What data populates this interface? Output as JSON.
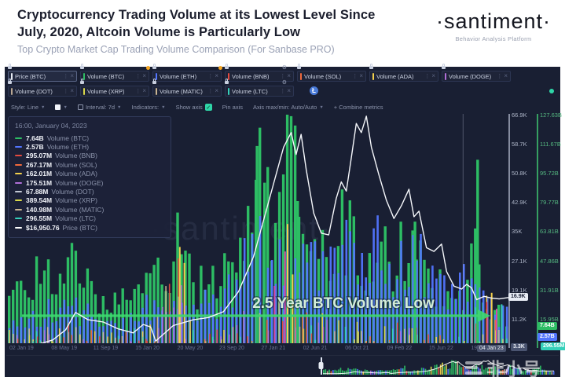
{
  "header": {
    "title_line1": "Cryptocurrency Trading Volume at its Lowest Level Since",
    "title_line2": "July, 2020, Altcoin Volume is Particularly Low",
    "subtitle": "Top Crypto Market Cap Trading Volume Comparison (For Sanbase PRO)",
    "logo": "·santiment·",
    "logo_tagline": "Behavior Analysis Platform"
  },
  "tabs": {
    "close_label": "×",
    "kebab_label": "⋮",
    "row1": [
      {
        "label": "Price (BTC)",
        "color": "#e8ecf4",
        "selected": true,
        "lock": true
      },
      {
        "label": "Volume (BTC)",
        "color": "#2dbd64",
        "lock": true,
        "dot": true
      },
      {
        "label": "Volume (ETH)",
        "color": "#5275ff",
        "lock": true,
        "dot": true
      },
      {
        "label": "Volume (BNB)",
        "color": "#e34a3f",
        "lock": true,
        "gear": true
      },
      {
        "label": "Volume (SOL)",
        "color": "#f0693c",
        "lock": true
      },
      {
        "label": "Volume (ADA)",
        "color": "#f2cf4c",
        "lock": true
      },
      {
        "label": "Volume (DOGE)",
        "color": "#b06fd8",
        "lock": true
      }
    ],
    "row2": [
      {
        "label": "Volume (DOT)",
        "color": "#b9a793",
        "lock": true
      },
      {
        "label": "Volume (XRP)",
        "color": "#d9d84a",
        "lock": true
      },
      {
        "label": "Volume (MATIC)",
        "color": "#cbb593",
        "lock": true
      },
      {
        "label": "Volume (LTC)",
        "color": "#35d0ba",
        "lock": true,
        "gear": true,
        "coin": "Ł"
      }
    ]
  },
  "toolbar": {
    "style_label": "Style: Line",
    "interval_label": "Interval: 7d",
    "indicators_label": "Indicators:",
    "show_axis_label": "Show axis",
    "check_glyph": "✓",
    "pin_axis_label": "Pin axis",
    "axis_maxmin_label": "Axis max/min: Auto/Auto",
    "combine_label": "+ Combine metrics"
  },
  "tooltip": {
    "datetime": "16:00, January 04, 2023",
    "rows": [
      {
        "value": "7.64B",
        "label": "Volume (BTC)",
        "color": "#2dbd64"
      },
      {
        "value": "2.57B",
        "label": "Volume (ETH)",
        "color": "#5275ff"
      },
      {
        "value": "295.07M",
        "label": "Volume (BNB)",
        "color": "#e34a3f"
      },
      {
        "value": "267.17M",
        "label": "Volume (SOL)",
        "color": "#f0693c"
      },
      {
        "value": "162.01M",
        "label": "Volume (ADA)",
        "color": "#f2cf4c"
      },
      {
        "value": "175.51M",
        "label": "Volume (DOGE)",
        "color": "#b06fd8"
      },
      {
        "value": "67.88M",
        "label": "Volume (DOT)",
        "color": "#c3c8d4"
      },
      {
        "value": "389.54M",
        "label": "Volume (XRP)",
        "color": "#d9d84a"
      },
      {
        "value": "140.98M",
        "label": "Volume (MATIC)",
        "color": "#cbb593"
      },
      {
        "value": "296.55M",
        "label": "Volume (LTC)",
        "color": "#35d0ba"
      },
      {
        "value": "$16,950.76",
        "label": "Price (BTC)",
        "color": "#ffffff"
      }
    ]
  },
  "annotation": {
    "text": "2.5 Year BTC Volume Low",
    "arrow_color": "#3ed96e",
    "text_color": "#d3ecd8"
  },
  "axes": {
    "price_labels": [
      "66.9K",
      "58.7K",
      "50.8K",
      "42.9K",
      "35K",
      "27.1K",
      "19.1K",
      "11.2K"
    ],
    "price_min_badge": "3.3K",
    "price_badge": "16.9K",
    "volume_labels": [
      "127.63B",
      "111.67B",
      "95.72B",
      "79.77B",
      "63.81B",
      "47.86B",
      "31.91B",
      "15.95B"
    ],
    "volume_badges": [
      {
        "text": "7.64B",
        "color": "#2dbd64"
      },
      {
        "text": "2.57B",
        "color": "#5275ff"
      },
      {
        "text": "296.55M",
        "color": "#35d0ba"
      }
    ],
    "dates": [
      "02 Jan 19",
      "08 May 19",
      "11 Sep 19",
      "15 Jan 20",
      "20 May 20",
      "23 Sep 20",
      "27 Jan 21",
      "02 Jun 21",
      "06 Oct 21",
      "09 Feb 22",
      "15 Jun 22",
      "19 Oct 22"
    ],
    "current_date_badge": "04 Jan 23"
  },
  "watermarks": {
    "chart": "·santiment·",
    "bottom_right": "非小号"
  },
  "chart_data": {
    "type": "composite",
    "subtypes": [
      "bar",
      "line"
    ],
    "title": "2.5 Year BTC Volume Low",
    "x_tick_labels": [
      "02 Jan 19",
      "08 May 19",
      "11 Sep 19",
      "15 Jan 20",
      "20 May 20",
      "23 Sep 20",
      "27 Jan 21",
      "02 Jun 21",
      "06 Oct 21",
      "09 Feb 22",
      "15 Jun 22",
      "19 Oct 22",
      "04 Jan 23"
    ],
    "price_axis": {
      "unit": "USD",
      "tick_labels": [
        "66.9K",
        "58.7K",
        "50.8K",
        "42.9K",
        "35K",
        "27.1K",
        "19.1K",
        "11.2K",
        "3.3K"
      ],
      "min_k": 3.3,
      "max_k": 67.1,
      "current": 16.9
    },
    "volume_axis": {
      "unit": "USD",
      "tick_labels": [
        "127.63B",
        "111.67B",
        "95.72B",
        "79.77B",
        "63.81B",
        "47.86B",
        "31.91B",
        "15.95B"
      ],
      "max_b": 130
    },
    "series": [
      {
        "name": "Price (BTC)",
        "type": "line",
        "color": "#ffffff",
        "current": "$16,950.76"
      },
      {
        "name": "Volume (BTC)",
        "type": "bar",
        "color": "#2dbd64",
        "current": "7.64B"
      },
      {
        "name": "Volume (ETH)",
        "type": "bar",
        "color": "#5275ff",
        "current": "2.57B"
      },
      {
        "name": "Volume (BNB)",
        "type": "bar",
        "color": "#e34a3f",
        "current": "295.07M"
      },
      {
        "name": "Volume (SOL)",
        "type": "bar",
        "color": "#f0693c",
        "current": "267.17M"
      },
      {
        "name": "Volume (ADA)",
        "type": "bar",
        "color": "#f2cf4c",
        "current": "162.01M"
      },
      {
        "name": "Volume (DOGE)",
        "type": "bar",
        "color": "#b06fd8",
        "current": "175.51M"
      },
      {
        "name": "Volume (DOT)",
        "type": "bar",
        "color": "#c3c8d4",
        "current": "67.88M"
      },
      {
        "name": "Volume (XRP)",
        "type": "bar",
        "color": "#d9d84a",
        "current": "389.54M"
      },
      {
        "name": "Volume (MATIC)",
        "type": "bar",
        "color": "#cbb593",
        "current": "140.98M"
      },
      {
        "name": "Volume (LTC)",
        "type": "bar",
        "color": "#35d0ba",
        "current": "296.55M"
      }
    ],
    "bars_count": 128,
    "price_points": [
      [
        0.0,
        3.8
      ],
      [
        0.03,
        3.7
      ],
      [
        0.06,
        4.0
      ],
      [
        0.09,
        5.3
      ],
      [
        0.115,
        8.0
      ],
      [
        0.135,
        12.8
      ],
      [
        0.16,
        10.8
      ],
      [
        0.19,
        10.2
      ],
      [
        0.22,
        8.3
      ],
      [
        0.25,
        7.2
      ],
      [
        0.27,
        9.5
      ],
      [
        0.285,
        8.8
      ],
      [
        0.295,
        5.0
      ],
      [
        0.33,
        9.2
      ],
      [
        0.37,
        10.8
      ],
      [
        0.4,
        11.4
      ],
      [
        0.43,
        13.0
      ],
      [
        0.46,
        18.5
      ],
      [
        0.49,
        28.0
      ],
      [
        0.51,
        38.0
      ],
      [
        0.53,
        48.0
      ],
      [
        0.55,
        58.0
      ],
      [
        0.565,
        62.0
      ],
      [
        0.575,
        56.0
      ],
      [
        0.585,
        61.5
      ],
      [
        0.595,
        52.0
      ],
      [
        0.61,
        40.0
      ],
      [
        0.625,
        34.5
      ],
      [
        0.64,
        34.0
      ],
      [
        0.655,
        44.0
      ],
      [
        0.665,
        48.5
      ],
      [
        0.675,
        46.0
      ],
      [
        0.685,
        55.0
      ],
      [
        0.695,
        64.5
      ],
      [
        0.705,
        62.0
      ],
      [
        0.715,
        66.5
      ],
      [
        0.725,
        58.0
      ],
      [
        0.74,
        50.5
      ],
      [
        0.755,
        43.5
      ],
      [
        0.77,
        38.5
      ],
      [
        0.785,
        42.0
      ],
      [
        0.8,
        46.5
      ],
      [
        0.81,
        39.0
      ],
      [
        0.82,
        40.5
      ],
      [
        0.835,
        30.5
      ],
      [
        0.85,
        29.5
      ],
      [
        0.865,
        31.5
      ],
      [
        0.875,
        24.0
      ],
      [
        0.89,
        20.0
      ],
      [
        0.905,
        19.2
      ],
      [
        0.915,
        20.5
      ],
      [
        0.925,
        19.5
      ],
      [
        0.935,
        16.3
      ],
      [
        0.95,
        17.2
      ],
      [
        0.965,
        16.7
      ],
      [
        0.98,
        16.5
      ],
      [
        1.0,
        16.9
      ]
    ],
    "btc_envelope": [
      [
        0.0,
        0.3
      ],
      [
        0.03,
        0.22
      ],
      [
        0.06,
        0.35
      ],
      [
        0.09,
        0.28
      ],
      [
        0.12,
        0.38
      ],
      [
        0.15,
        0.3
      ],
      [
        0.18,
        0.22
      ],
      [
        0.21,
        0.18
      ],
      [
        0.24,
        0.25
      ],
      [
        0.27,
        0.2
      ],
      [
        0.295,
        0.45
      ],
      [
        0.32,
        0.28
      ],
      [
        0.345,
        0.5
      ],
      [
        0.37,
        0.24
      ],
      [
        0.4,
        0.28
      ],
      [
        0.44,
        0.35
      ],
      [
        0.48,
        0.52
      ],
      [
        0.5,
        0.88
      ],
      [
        0.52,
        0.65
      ],
      [
        0.545,
        0.6
      ],
      [
        0.565,
        0.98
      ],
      [
        0.58,
        0.7
      ],
      [
        0.6,
        0.52
      ],
      [
        0.62,
        0.45
      ],
      [
        0.645,
        0.42
      ],
      [
        0.66,
        0.55
      ],
      [
        0.69,
        0.48
      ],
      [
        0.72,
        0.4
      ],
      [
        0.75,
        0.42
      ],
      [
        0.78,
        0.38
      ],
      [
        0.812,
        0.5
      ],
      [
        0.84,
        0.3
      ],
      [
        0.87,
        0.25
      ],
      [
        0.9,
        0.2
      ],
      [
        0.92,
        0.18
      ],
      [
        0.935,
        0.8
      ],
      [
        0.945,
        0.45
      ],
      [
        0.96,
        0.2
      ],
      [
        0.98,
        0.14
      ],
      [
        1.0,
        0.12
      ]
    ],
    "eth_envelope": [
      [
        0.0,
        0.1
      ],
      [
        0.06,
        0.14
      ],
      [
        0.12,
        0.16
      ],
      [
        0.18,
        0.12
      ],
      [
        0.24,
        0.1
      ],
      [
        0.295,
        0.2
      ],
      [
        0.34,
        0.14
      ],
      [
        0.4,
        0.18
      ],
      [
        0.45,
        0.25
      ],
      [
        0.5,
        0.45
      ],
      [
        0.545,
        0.42
      ],
      [
        0.575,
        0.6
      ],
      [
        0.6,
        0.45
      ],
      [
        0.63,
        0.38
      ],
      [
        0.66,
        0.42
      ],
      [
        0.7,
        0.38
      ],
      [
        0.74,
        0.42
      ],
      [
        0.78,
        0.36
      ],
      [
        0.812,
        0.44
      ],
      [
        0.86,
        0.26
      ],
      [
        0.9,
        0.2
      ],
      [
        0.935,
        0.45
      ],
      [
        0.96,
        0.16
      ],
      [
        1.0,
        0.12
      ]
    ],
    "alt_envelope": [
      [
        0.0,
        0.06
      ],
      [
        0.06,
        0.08
      ],
      [
        0.12,
        0.1
      ],
      [
        0.18,
        0.06
      ],
      [
        0.24,
        0.05
      ],
      [
        0.295,
        0.12
      ],
      [
        0.345,
        0.45
      ],
      [
        0.37,
        0.12
      ],
      [
        0.4,
        0.08
      ],
      [
        0.44,
        0.1
      ],
      [
        0.48,
        0.18
      ],
      [
        0.52,
        0.25
      ],
      [
        0.55,
        0.45
      ],
      [
        0.575,
        0.3
      ],
      [
        0.6,
        0.15
      ],
      [
        0.64,
        0.12
      ],
      [
        0.68,
        0.1
      ],
      [
        0.72,
        0.12
      ],
      [
        0.76,
        0.1
      ],
      [
        0.8,
        0.08
      ],
      [
        0.84,
        0.08
      ],
      [
        0.88,
        0.06
      ],
      [
        0.92,
        0.1
      ],
      [
        0.935,
        0.3
      ],
      [
        0.955,
        0.22
      ],
      [
        0.97,
        0.18
      ],
      [
        1.0,
        0.15
      ]
    ],
    "green_spikes": [
      [
        0.497,
        0.86
      ],
      [
        0.512,
        0.7
      ],
      [
        0.565,
        0.99
      ],
      [
        0.578,
        0.62
      ],
      [
        0.812,
        0.53
      ],
      [
        0.937,
        0.8
      ]
    ],
    "alt_spikes": [
      [
        "#f2cf4c",
        0.343,
        0.42
      ],
      [
        "#f2cf4c",
        0.352,
        0.35
      ],
      [
        "#d24ca8",
        0.532,
        0.25
      ],
      [
        "#d24ca8",
        0.553,
        0.4
      ],
      [
        "#f2cf4c",
        0.558,
        0.52
      ],
      [
        "#f2cf4c",
        0.568,
        0.3
      ],
      [
        "#e34a3f",
        0.955,
        0.18
      ],
      [
        "#f2cf4c",
        0.965,
        0.22
      ],
      [
        "#d24ca8",
        0.975,
        0.15
      ],
      [
        "#35d0ba",
        0.985,
        0.17
      ]
    ],
    "alt_palette": [
      "#f2cf4c",
      "#e34a3f",
      "#b06fd8",
      "#35d0ba",
      "#f0693c",
      "#d9d84a",
      "#cbb593"
    ],
    "crosshair_x_frac": 0.908,
    "legend_position": "top-left",
    "grid": false
  },
  "colors": {
    "panel_bg": "#191f33",
    "btc_green": "#2dbd64",
    "eth_blue": "#5275ff",
    "price_white": "#f5f7fb",
    "axis_gray": "#aeb6c8",
    "axis_green": "#55b880"
  }
}
